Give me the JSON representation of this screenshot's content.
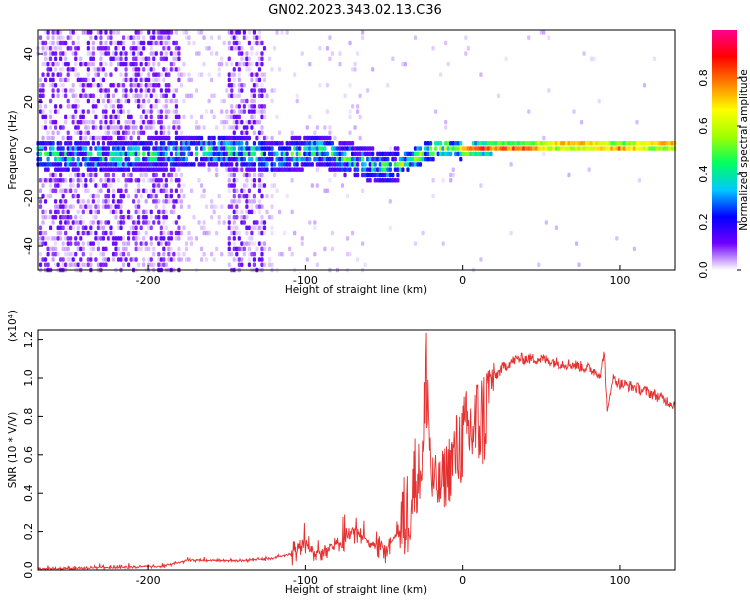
{
  "title": "GN02.2023.343.02.13.C36",
  "chart_data": [
    {
      "type": "heatmap",
      "xlabel": "Height of straight line (km)",
      "ylabel": "Frequency (Hz)",
      "xlim": [
        -270,
        135
      ],
      "ylim": [
        -50,
        50
      ],
      "x_ticks": [
        -200,
        -100,
        0,
        100
      ],
      "y_ticks": [
        -40,
        -20,
        0,
        20,
        40
      ],
      "colorbar": {
        "label": "Normalized spectral amplitude",
        "range": [
          0,
          1
        ],
        "ticks": [
          0.0,
          0.2,
          0.4,
          0.6,
          0.8
        ],
        "colormap": [
          "#ffffff",
          "#7000ff",
          "#0000ff",
          "#00c8ff",
          "#00ff60",
          "#a0ff00",
          "#ffff00",
          "#ff8000",
          "#ff0000",
          "#ff0090"
        ]
      },
      "ridge": {
        "x": [
          -265,
          -240,
          -220,
          -200,
          -180,
          -160,
          -140,
          -120,
          -100,
          -90,
          -80,
          -70,
          -60,
          -50,
          -40,
          -30,
          -20,
          -10,
          0,
          20,
          40,
          60,
          80,
          100,
          120,
          135
        ],
        "freq": [
          -2,
          -3,
          -3,
          -2,
          -1,
          0,
          -1,
          -3,
          -1,
          0,
          -3,
          -4,
          -6,
          -7,
          -6,
          -3,
          0,
          1,
          0,
          1,
          1,
          2,
          2,
          1,
          2,
          2
        ]
      }
    },
    {
      "type": "line",
      "xlabel": "Height of straight line (km)",
      "ylabel": "SNR (10 * V/V)",
      "ylabel_scale": "(x10⁴)",
      "xlim": [
        -270,
        135
      ],
      "ylim": [
        0,
        1.25
      ],
      "x_ticks": [
        -200,
        -100,
        0,
        100
      ],
      "y_ticks": [
        0.0,
        0.2,
        0.4,
        0.6,
        0.8,
        1.0,
        1.2
      ],
      "color": "#e53030",
      "series": [
        {
          "x": [
            -270,
            -250,
            -230,
            -210,
            -190,
            -175,
            -160,
            -140,
            -120,
            -105,
            -100,
            -95,
            -85,
            -75,
            -70,
            -60,
            -50,
            -40,
            -35,
            -30,
            -25,
            -23,
            -20,
            -15,
            -10,
            -5,
            0,
            5,
            10,
            15,
            20,
            25,
            30,
            35,
            40,
            45,
            50,
            60,
            70,
            80,
            88,
            90,
            92,
            95,
            100,
            110,
            120,
            130,
            135
          ],
          "values": [
            0.005,
            0.008,
            0.012,
            0.015,
            0.02,
            0.05,
            0.05,
            0.05,
            0.06,
            0.1,
            0.15,
            0.08,
            0.12,
            0.15,
            0.22,
            0.15,
            0.1,
            0.2,
            0.3,
            0.5,
            0.7,
            1.25,
            0.55,
            0.5,
            0.6,
            0.7,
            0.8,
            0.85,
            0.9,
            0.95,
            1.0,
            1.05,
            1.08,
            1.1,
            1.1,
            1.1,
            1.1,
            1.08,
            1.07,
            1.05,
            1.02,
            1.15,
            0.8,
            1.0,
            0.97,
            0.95,
            0.92,
            0.88,
            0.86
          ]
        }
      ]
    }
  ]
}
